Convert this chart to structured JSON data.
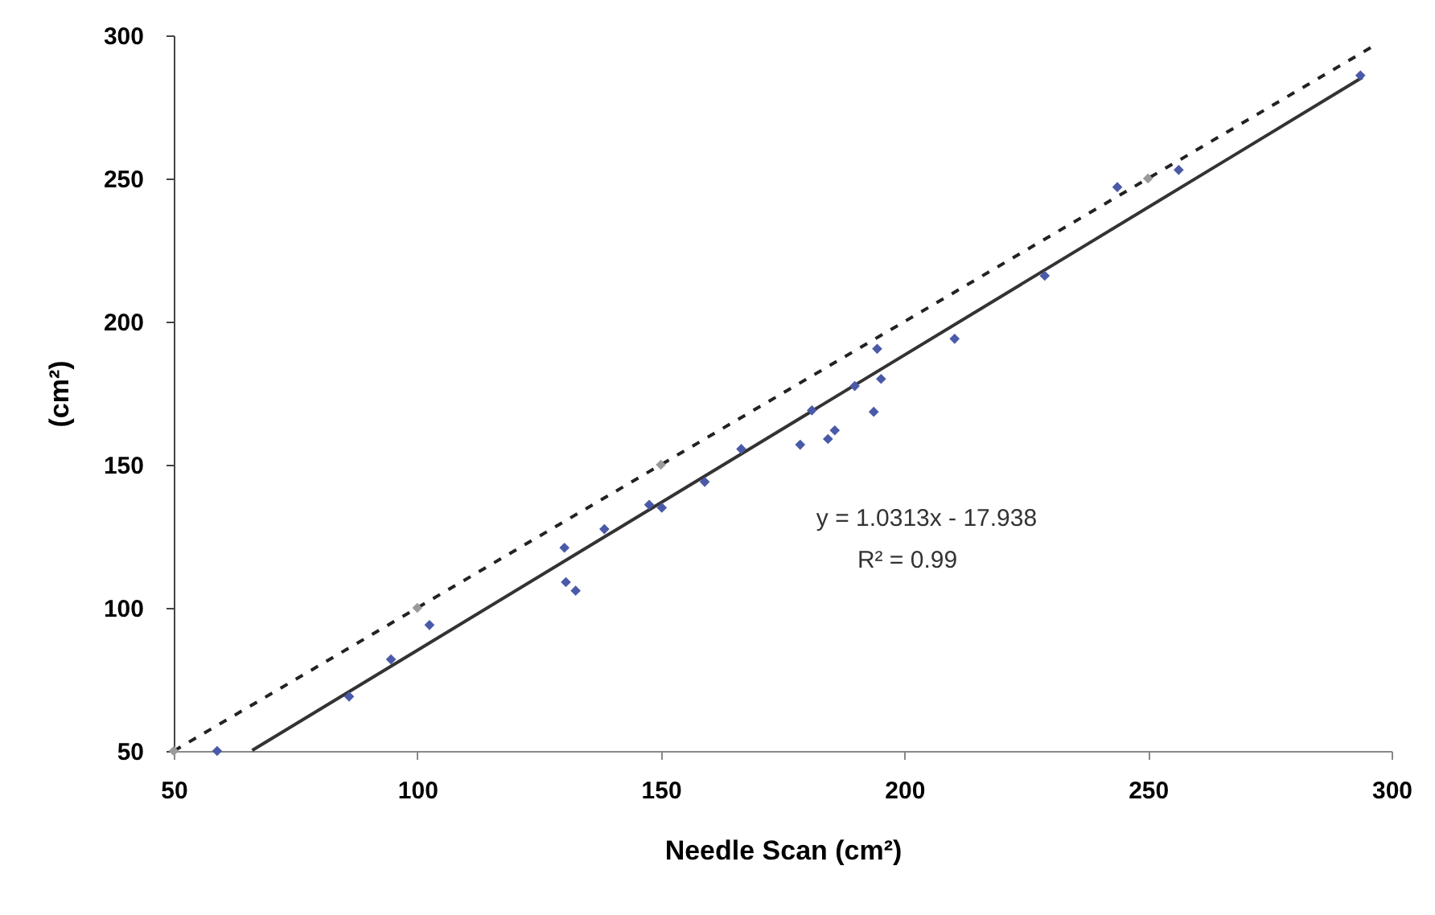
{
  "chart_data": {
    "type": "scatter",
    "xlabel": "Needle Scan (cm²)",
    "ylabel": "(cm²)",
    "xlim": [
      50,
      300
    ],
    "ylim": [
      50,
      300
    ],
    "xticks": [
      50,
      100,
      150,
      200,
      250,
      300
    ],
    "yticks": [
      50,
      100,
      150,
      200,
      250,
      300
    ],
    "marker": "diamond",
    "annotations": [
      "y = 1.0313x - 17.938",
      "R² = 0.99"
    ],
    "series": [
      {
        "color": "#4a5aa8",
        "x": [
          58.9,
          86,
          94.6,
          102.5,
          130.2,
          130.5,
          132.5,
          138.4,
          147.6,
          150.2,
          159,
          166.5,
          178.6,
          181,
          184.3,
          185.7,
          189.8,
          193.7,
          194.4,
          195.2,
          210.3,
          228.8,
          243.7,
          256.3,
          293.6
        ],
        "values": [
          50,
          69,
          82,
          94,
          121,
          109,
          106,
          127.5,
          136,
          135,
          144,
          155.5,
          157,
          169,
          159,
          162,
          177.5,
          168.5,
          190.5,
          180,
          194,
          216,
          247,
          253,
          286
        ]
      },
      {
        "color": "#9a9a9a",
        "x": [
          50,
          100,
          150,
          250
        ],
        "values": [
          50,
          100,
          150,
          250
        ]
      },
      {
        "type": "line",
        "color": "#222222",
        "line_style": "dashed",
        "marker": "none",
        "x": [
          50,
          296
        ],
        "values": [
          50,
          296
        ]
      },
      {
        "type": "line",
        "color": "#333333",
        "line_style": "solid",
        "marker": "none",
        "x": [
          66.1,
          294
        ],
        "values": [
          50.2,
          285.3
        ]
      }
    ]
  }
}
